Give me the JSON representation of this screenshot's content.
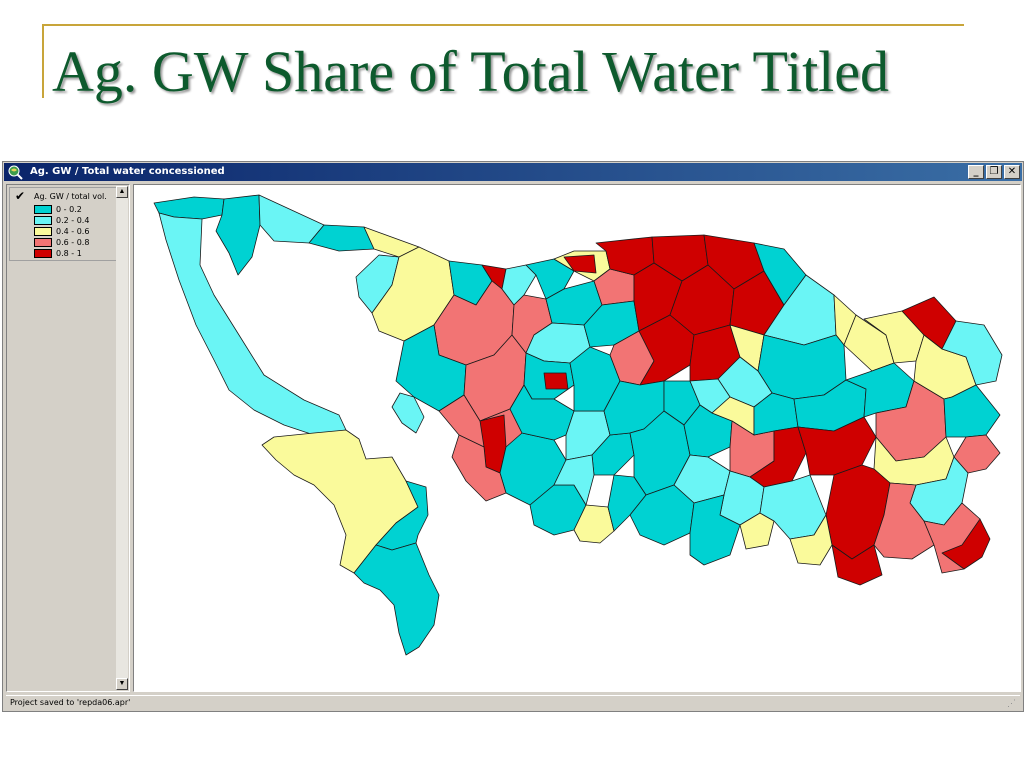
{
  "slide": {
    "title": "Ag. GW Share of Total Water Titled"
  },
  "window": {
    "title": "Ag. GW / Total water concessioned",
    "buttons": {
      "minimize": "_",
      "maximize": "❐",
      "close": "✕"
    }
  },
  "legend": {
    "layer_name": "Ag. GW / total vol.",
    "checked": true,
    "classes": [
      {
        "label": "0 - 0.2",
        "color": "#00d2d2"
      },
      {
        "label": "0.2 - 0.4",
        "color": "#6af5f5"
      },
      {
        "label": "0.4 - 0.6",
        "color": "#fafa9b"
      },
      {
        "label": "0.6 - 0.8",
        "color": "#f27474"
      },
      {
        "label": "0.8 - 1",
        "color": "#cf0000"
      }
    ]
  },
  "status": {
    "message": "Project saved to 'repda06.apr'"
  }
}
